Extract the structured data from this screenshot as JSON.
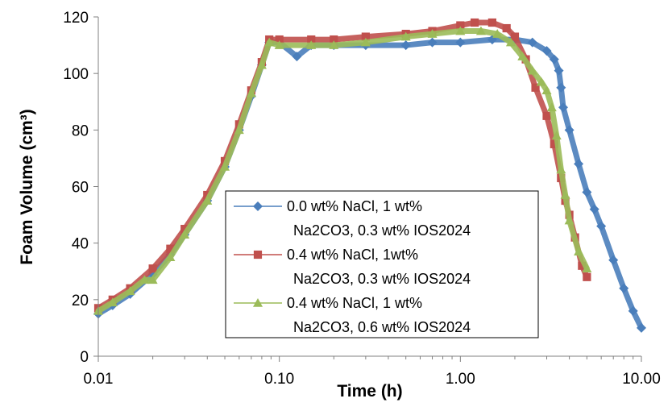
{
  "chart_data": {
    "type": "scatter",
    "title": "",
    "xlabel": "Time (h)",
    "ylabel": "Foam Volume (cm³)",
    "x_scale": "log",
    "xlim": [
      0.01,
      10
    ],
    "ylim": [
      0,
      120
    ],
    "x_ticks": [
      0.01,
      0.1,
      1,
      10
    ],
    "x_tick_labels": [
      "0.01",
      "0.10",
      "1.00",
      "10.00"
    ],
    "y_ticks": [
      0,
      20,
      40,
      60,
      80,
      100,
      120
    ],
    "y_tick_labels": [
      "0",
      "20",
      "40",
      "60",
      "80",
      "100",
      "120"
    ],
    "grid": false,
    "legend_position": "center",
    "series": [
      {
        "name": "0.0 wt% NaCl, 1 wt% Na2CO3, 0.3 wt% IOS2024",
        "legend_lines": [
          "0.0 wt% NaCl, 1 wt%",
          "Na2CO3, 0.3 wt% IOS2024"
        ],
        "color": "#4a7ebb",
        "marker": "diamond",
        "x": [
          0.01,
          0.012,
          0.015,
          0.02,
          0.025,
          0.03,
          0.04,
          0.05,
          0.06,
          0.07,
          0.08,
          0.088,
          0.1,
          0.125,
          0.15,
          0.2,
          0.3,
          0.5,
          0.7,
          1.0,
          1.5,
          2.0,
          2.5,
          3.0,
          3.3,
          3.5,
          3.6,
          3.7,
          4.0,
          4.5,
          5.0,
          5.5,
          6.0,
          7.0,
          8.0,
          9.0,
          10.0
        ],
        "y": [
          15,
          18,
          22,
          29,
          36,
          43,
          55,
          67,
          80,
          92,
          103,
          111,
          111,
          106,
          110,
          110,
          110,
          110,
          111,
          111,
          112,
          112,
          111,
          108,
          105,
          101,
          95,
          88,
          80,
          68,
          58,
          52,
          46,
          34,
          24,
          16,
          10
        ]
      },
      {
        "name": "0.4 wt% NaCl, 1wt% Na2CO3, 0.3 wt% IOS2024",
        "legend_lines": [
          "0.4 wt% NaCl, 1wt%",
          "Na2CO3, 0.3 wt% IOS2024"
        ],
        "color": "#c0504d",
        "marker": "square",
        "x": [
          0.01,
          0.012,
          0.015,
          0.02,
          0.025,
          0.03,
          0.04,
          0.05,
          0.06,
          0.07,
          0.08,
          0.088,
          0.1,
          0.15,
          0.2,
          0.3,
          0.5,
          0.7,
          1.0,
          1.2,
          1.5,
          1.8,
          2.0,
          2.3,
          2.6,
          3.0,
          3.3,
          3.6,
          3.8,
          4.0,
          4.3,
          4.7,
          5.0
        ],
        "y": [
          17,
          20,
          24,
          31,
          38,
          45,
          57,
          69,
          82,
          94,
          104,
          112,
          112,
          112,
          112,
          113,
          114,
          115,
          117,
          118,
          118,
          116,
          113,
          105,
          95,
          85,
          75,
          63,
          55,
          50,
          42,
          32,
          28
        ]
      },
      {
        "name": "0.4 wt% NaCl, 1 wt% Na2CO3, 0.6 wt% IOS2024",
        "legend_lines": [
          "0.4 wt% NaCl, 1 wt%",
          "Na2CO3, 0.6 wt% IOS2024"
        ],
        "color": "#9bbb59",
        "marker": "triangle",
        "x": [
          0.01,
          0.012,
          0.015,
          0.018,
          0.02,
          0.025,
          0.03,
          0.04,
          0.05,
          0.06,
          0.07,
          0.08,
          0.088,
          0.1,
          0.15,
          0.2,
          0.3,
          0.5,
          0.7,
          1.0,
          1.3,
          1.6,
          1.9,
          2.2,
          2.5,
          2.8,
          3.0,
          3.2,
          3.4,
          3.6,
          3.8,
          4.0,
          4.5,
          5.0
        ],
        "y": [
          16,
          19,
          23,
          27,
          27,
          35,
          43,
          55,
          67,
          80,
          93,
          103,
          111,
          110,
          110,
          110,
          111,
          113,
          114,
          115,
          115,
          114,
          111,
          106,
          101,
          97,
          94,
          88,
          78,
          66,
          57,
          48,
          37,
          31
        ]
      }
    ]
  }
}
